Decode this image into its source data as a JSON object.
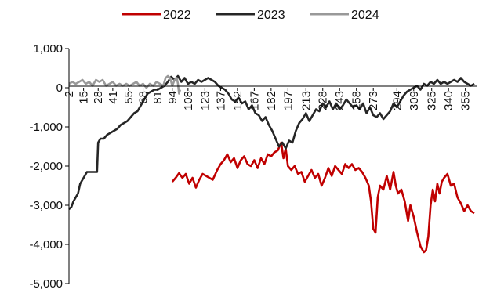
{
  "chart_data": {
    "type": "line",
    "title": "",
    "xlabel": "",
    "ylabel": "",
    "ylim": [
      -5000,
      1000
    ],
    "xlim": [
      2,
      365
    ],
    "y_ticks": [
      1000,
      0,
      -1000,
      -2000,
      -3000,
      -4000,
      -5000
    ],
    "y_tick_labels": [
      "1,000",
      "0",
      "-1,000",
      "-2,000",
      "-3,000",
      "-4,000",
      "-5,000"
    ],
    "x_ticks": [
      2,
      15,
      28,
      41,
      55,
      68,
      81,
      94,
      108,
      123,
      137,
      152,
      167,
      182,
      197,
      213,
      228,
      243,
      258,
      273,
      294,
      309,
      325,
      340,
      355
    ],
    "x_tick_labels": [
      "2",
      "15",
      "28",
      "41",
      "55",
      "68",
      "81",
      "94",
      "108",
      "123",
      "137",
      "152",
      "167",
      "182",
      "197",
      "213",
      "228",
      "243",
      "258",
      "273",
      "294",
      "309",
      "325",
      "340",
      "355"
    ],
    "legend_position": "top-center",
    "series": [
      {
        "name": "2022",
        "color": "#c00000",
        "points": [
          [
            94,
            -2400
          ],
          [
            97,
            -2300
          ],
          [
            100,
            -2180
          ],
          [
            103,
            -2300
          ],
          [
            106,
            -2200
          ],
          [
            109,
            -2450
          ],
          [
            112,
            -2300
          ],
          [
            115,
            -2550
          ],
          [
            118,
            -2350
          ],
          [
            121,
            -2200
          ],
          [
            124,
            -2250
          ],
          [
            127,
            -2300
          ],
          [
            130,
            -2350
          ],
          [
            134,
            -2100
          ],
          [
            137,
            -1950
          ],
          [
            140,
            -1850
          ],
          [
            143,
            -1700
          ],
          [
            146,
            -1900
          ],
          [
            149,
            -1800
          ],
          [
            152,
            -2050
          ],
          [
            155,
            -1850
          ],
          [
            158,
            -1750
          ],
          [
            161,
            -1950
          ],
          [
            164,
            -2000
          ],
          [
            167,
            -1850
          ],
          [
            170,
            -2050
          ],
          [
            173,
            -1800
          ],
          [
            176,
            -1950
          ],
          [
            179,
            -1700
          ],
          [
            182,
            -1750
          ],
          [
            185,
            -1650
          ],
          [
            188,
            -1600
          ],
          [
            191,
            -1400
          ],
          [
            193,
            -1800
          ],
          [
            195,
            -1550
          ],
          [
            197,
            -2000
          ],
          [
            200,
            -2100
          ],
          [
            203,
            -2000
          ],
          [
            206,
            -2200
          ],
          [
            209,
            -2150
          ],
          [
            212,
            -2400
          ],
          [
            215,
            -2250
          ],
          [
            218,
            -2100
          ],
          [
            221,
            -2300
          ],
          [
            224,
            -2200
          ],
          [
            227,
            -2500
          ],
          [
            230,
            -2300
          ],
          [
            233,
            -2050
          ],
          [
            236,
            -2250
          ],
          [
            239,
            -2000
          ],
          [
            242,
            -2100
          ],
          [
            245,
            -2200
          ],
          [
            248,
            -1950
          ],
          [
            251,
            -2050
          ],
          [
            254,
            -1950
          ],
          [
            257,
            -2100
          ],
          [
            260,
            -2050
          ],
          [
            263,
            -2150
          ],
          [
            266,
            -2300
          ],
          [
            269,
            -2500
          ],
          [
            271,
            -2900
          ],
          [
            273,
            -3600
          ],
          [
            275,
            -3700
          ],
          [
            277,
            -2800
          ],
          [
            279,
            -2500
          ],
          [
            282,
            -2600
          ],
          [
            285,
            -2250
          ],
          [
            288,
            -2600
          ],
          [
            291,
            -2150
          ],
          [
            293,
            -2500
          ],
          [
            295,
            -2700
          ],
          [
            298,
            -2600
          ],
          [
            301,
            -2900
          ],
          [
            304,
            -3400
          ],
          [
            306,
            -3000
          ],
          [
            309,
            -3300
          ],
          [
            312,
            -3700
          ],
          [
            315,
            -4050
          ],
          [
            318,
            -4200
          ],
          [
            320,
            -4150
          ],
          [
            322,
            -3800
          ],
          [
            324,
            -3000
          ],
          [
            326,
            -2600
          ],
          [
            328,
            -2900
          ],
          [
            330,
            -2450
          ],
          [
            332,
            -2700
          ],
          [
            334,
            -2400
          ],
          [
            336,
            -2300
          ],
          [
            339,
            -2200
          ],
          [
            342,
            -2500
          ],
          [
            345,
            -2450
          ],
          [
            348,
            -2800
          ],
          [
            351,
            -2950
          ],
          [
            354,
            -3150
          ],
          [
            357,
            -3000
          ],
          [
            360,
            -3150
          ],
          [
            363,
            -3200
          ]
        ]
      },
      {
        "name": "2023",
        "color": "#262626",
        "points": [
          [
            2,
            -3100
          ],
          [
            4,
            -3050
          ],
          [
            6,
            -2900
          ],
          [
            8,
            -2800
          ],
          [
            10,
            -2700
          ],
          [
            12,
            -2450
          ],
          [
            14,
            -2350
          ],
          [
            16,
            -2250
          ],
          [
            18,
            -2150
          ],
          [
            21,
            -2150
          ],
          [
            24,
            -2150
          ],
          [
            27,
            -2150
          ],
          [
            28,
            -1400
          ],
          [
            30,
            -1300
          ],
          [
            33,
            -1300
          ],
          [
            36,
            -1200
          ],
          [
            39,
            -1150
          ],
          [
            42,
            -1100
          ],
          [
            45,
            -1050
          ],
          [
            48,
            -950
          ],
          [
            51,
            -900
          ],
          [
            54,
            -850
          ],
          [
            57,
            -750
          ],
          [
            60,
            -650
          ],
          [
            63,
            -600
          ],
          [
            66,
            -450
          ],
          [
            69,
            -300
          ],
          [
            72,
            -150
          ],
          [
            75,
            -100
          ],
          [
            78,
            -50
          ],
          [
            81,
            -50
          ],
          [
            84,
            0
          ],
          [
            87,
            50
          ],
          [
            90,
            150
          ],
          [
            93,
            280
          ],
          [
            96,
            200
          ],
          [
            99,
            300
          ],
          [
            102,
            150
          ],
          [
            105,
            250
          ],
          [
            108,
            100
          ],
          [
            111,
            150
          ],
          [
            114,
            100
          ],
          [
            117,
            200
          ],
          [
            120,
            150
          ],
          [
            123,
            200
          ],
          [
            126,
            250
          ],
          [
            129,
            200
          ],
          [
            132,
            150
          ],
          [
            135,
            50
          ],
          [
            138,
            0
          ],
          [
            141,
            -50
          ],
          [
            144,
            -150
          ],
          [
            147,
            -300
          ],
          [
            150,
            -350
          ],
          [
            153,
            -250
          ],
          [
            156,
            -400
          ],
          [
            159,
            -350
          ],
          [
            162,
            -550
          ],
          [
            165,
            -450
          ],
          [
            168,
            -650
          ],
          [
            171,
            -700
          ],
          [
            174,
            -850
          ],
          [
            177,
            -750
          ],
          [
            180,
            -950
          ],
          [
            183,
            -1100
          ],
          [
            186,
            -1300
          ],
          [
            189,
            -1500
          ],
          [
            192,
            -1400
          ],
          [
            195,
            -1550
          ],
          [
            198,
            -1350
          ],
          [
            201,
            -1400
          ],
          [
            204,
            -1100
          ],
          [
            207,
            -900
          ],
          [
            210,
            -800
          ],
          [
            213,
            -650
          ],
          [
            216,
            -850
          ],
          [
            219,
            -700
          ],
          [
            222,
            -550
          ],
          [
            225,
            -600
          ],
          [
            228,
            -400
          ],
          [
            231,
            -500
          ],
          [
            234,
            -350
          ],
          [
            237,
            -550
          ],
          [
            240,
            -400
          ],
          [
            243,
            -550
          ],
          [
            246,
            -450
          ],
          [
            249,
            -300
          ],
          [
            252,
            -400
          ],
          [
            255,
            -500
          ],
          [
            258,
            -450
          ],
          [
            261,
            -550
          ],
          [
            264,
            -400
          ],
          [
            267,
            -650
          ],
          [
            270,
            -500
          ],
          [
            273,
            -700
          ],
          [
            276,
            -750
          ],
          [
            279,
            -650
          ],
          [
            282,
            -800
          ],
          [
            285,
            -700
          ],
          [
            288,
            -600
          ],
          [
            291,
            -400
          ],
          [
            294,
            -500
          ],
          [
            297,
            -350
          ],
          [
            300,
            -200
          ],
          [
            303,
            -100
          ],
          [
            306,
            -50
          ],
          [
            309,
            0
          ],
          [
            312,
            50
          ],
          [
            315,
            -50
          ],
          [
            318,
            100
          ],
          [
            321,
            50
          ],
          [
            324,
            150
          ],
          [
            327,
            100
          ],
          [
            330,
            200
          ],
          [
            333,
            100
          ],
          [
            336,
            150
          ],
          [
            339,
            100
          ],
          [
            342,
            150
          ],
          [
            345,
            200
          ],
          [
            348,
            150
          ],
          [
            351,
            250
          ],
          [
            354,
            150
          ],
          [
            357,
            100
          ],
          [
            360,
            50
          ],
          [
            363,
            100
          ]
        ]
      },
      {
        "name": "2024",
        "color": "#999999",
        "points": [
          [
            2,
            100
          ],
          [
            5,
            150
          ],
          [
            8,
            100
          ],
          [
            11,
            150
          ],
          [
            14,
            200
          ],
          [
            17,
            100
          ],
          [
            20,
            150
          ],
          [
            23,
            50
          ],
          [
            26,
            200
          ],
          [
            29,
            150
          ],
          [
            32,
            200
          ],
          [
            35,
            50
          ],
          [
            38,
            100
          ],
          [
            41,
            150
          ],
          [
            44,
            50
          ],
          [
            47,
            100
          ],
          [
            50,
            50
          ],
          [
            53,
            100
          ],
          [
            56,
            50
          ],
          [
            59,
            100
          ],
          [
            62,
            150
          ],
          [
            65,
            50
          ],
          [
            68,
            100
          ],
          [
            71,
            0
          ],
          [
            74,
            100
          ],
          [
            77,
            50
          ],
          [
            80,
            150
          ],
          [
            83,
            100
          ],
          [
            86,
            50
          ],
          [
            88,
            250
          ],
          [
            90,
            300
          ],
          [
            92,
            250
          ],
          [
            94,
            50
          ],
          [
            96,
            200
          ],
          [
            98,
            250
          ],
          [
            99,
            100
          ],
          [
            100,
            -150
          ],
          [
            101,
            -50
          ]
        ]
      }
    ]
  }
}
